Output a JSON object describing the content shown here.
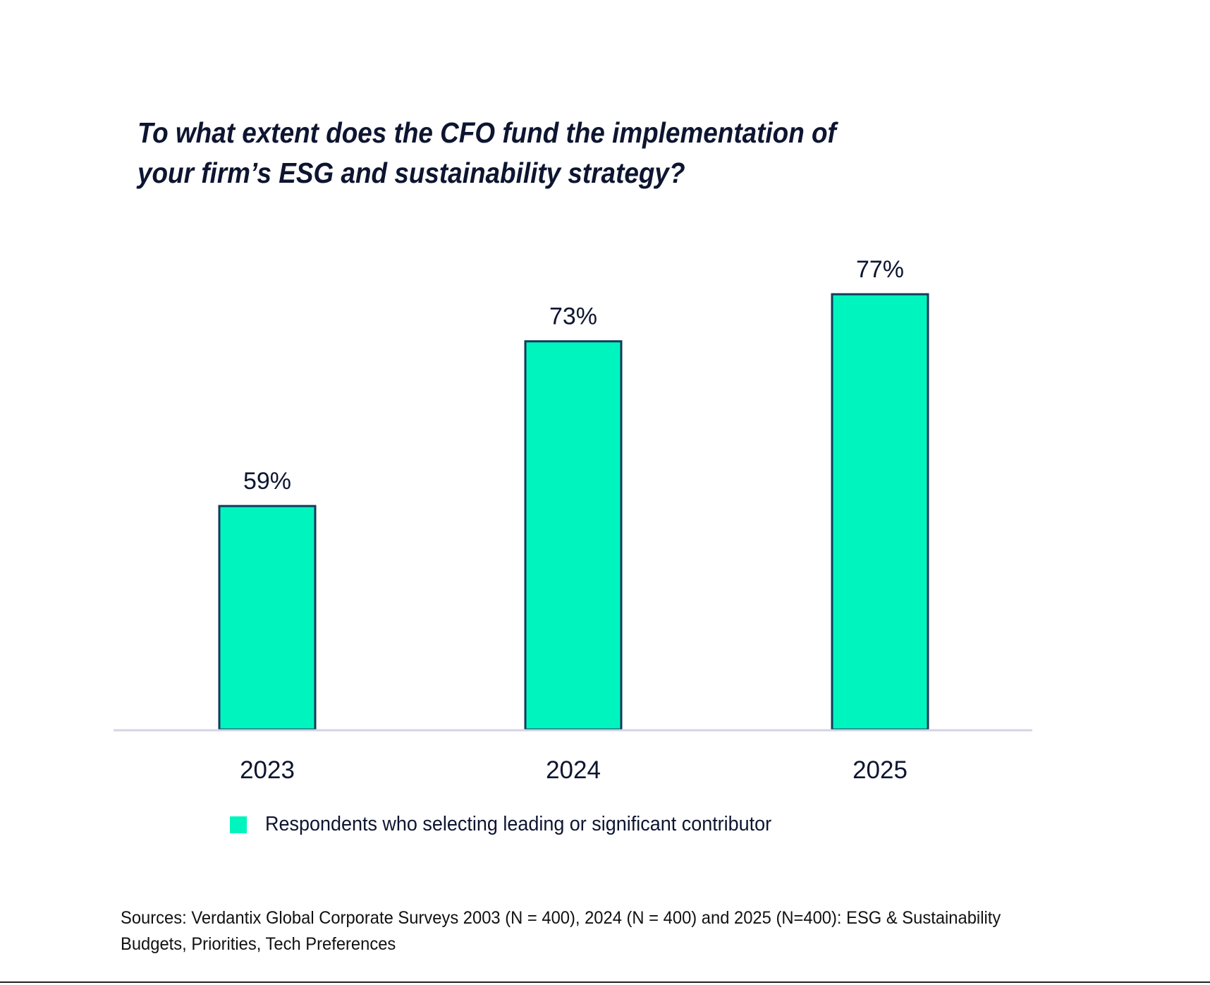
{
  "chart_data": {
    "type": "bar",
    "title": "To what extent does the CFO fund the implementation of\nyour firm’s ESG and sustainability strategy?",
    "categories": [
      "2023",
      "2024",
      "2025"
    ],
    "series": [
      {
        "name": "Respondents who selecting leading or significant contributor",
        "values": [
          59,
          73,
          77
        ],
        "labels": [
          "59%",
          "73%",
          "77%"
        ]
      }
    ],
    "xlabel": "",
    "ylabel": "",
    "ylim": [
      40,
      80
    ],
    "grid": false,
    "legend_position": "bottom",
    "colors": {
      "bar": "#00F5BE",
      "bar_border": "#163a5c",
      "axis": "#d4d4e4",
      "text": "#0d1530"
    }
  },
  "sources": "Sources: Verdantix Global Corporate Surveys 2003 (N = 400), 2024 (N = 400) and 2025 (N=400): ESG & Sustainability Budgets, Priorities, Tech Preferences"
}
